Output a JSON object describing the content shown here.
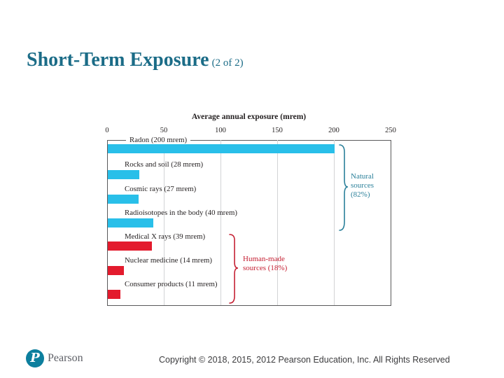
{
  "slide": {
    "title": "Short-Term Exposure",
    "page_indicator": "(2 of 2)"
  },
  "colors": {
    "title_teal": "#1b6c87",
    "bar_natural": "#29bfe9",
    "bar_human": "#e31b2d",
    "group_natural": "#2b809a",
    "group_human": "#c52033",
    "chart_text": "#231f20"
  },
  "chart_data": {
    "type": "bar",
    "orientation": "horizontal",
    "title": "Average annual exposure (mrem)",
    "xlabel": "Average annual exposure (mrem)",
    "ylabel": "",
    "xlim": [
      0,
      250
    ],
    "x_ticks": [
      0,
      50,
      100,
      150,
      200,
      250
    ],
    "grid": true,
    "categories": [
      "Radon",
      "Rocks and soil",
      "Cosmic rays",
      "Radioisotopes in the body",
      "Medical X rays",
      "Nuclear medicine",
      "Consumer products"
    ],
    "values": [
      200,
      28,
      27,
      40,
      39,
      14,
      11
    ],
    "bars": [
      {
        "label": "Radon (200 mrem)",
        "value": 200,
        "group": "natural"
      },
      {
        "label": "Rocks and soil (28 mrem)",
        "value": 28,
        "group": "natural"
      },
      {
        "label": "Cosmic rays (27 mrem)",
        "value": 27,
        "group": "natural"
      },
      {
        "label": "Radioisotopes in the body (40 mrem)",
        "value": 40,
        "group": "natural"
      },
      {
        "label": "Medical X rays (39 mrem)",
        "value": 39,
        "group": "human"
      },
      {
        "label": "Nuclear medicine (14 mrem)",
        "value": 14,
        "group": "human"
      },
      {
        "label": "Consumer products (11 mrem)",
        "value": 11,
        "group": "human"
      }
    ],
    "groups": [
      {
        "id": "natural",
        "label_lines": [
          "Natural",
          "sources",
          "(82%)"
        ],
        "percent": 82
      },
      {
        "id": "human",
        "label_lines": [
          "Human-made",
          "sources (18%)"
        ],
        "percent": 18
      }
    ]
  },
  "footer": {
    "logo_letter": "P",
    "brand": "Pearson",
    "copyright": "Copyright © 2018, 2015, 2012 Pearson Education, Inc. All Rights Reserved"
  }
}
